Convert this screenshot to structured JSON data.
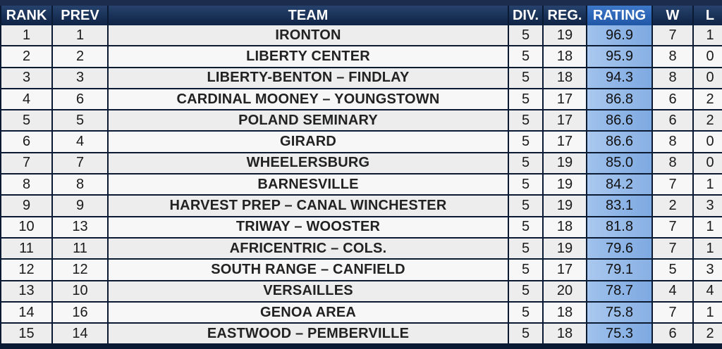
{
  "columns": {
    "rank": "RANK",
    "prev": "PREV",
    "team": "TEAM",
    "div": "DIV.",
    "reg": "REG.",
    "rating": "RATING",
    "w": "W",
    "l": "L"
  },
  "rows": [
    {
      "rank": "1",
      "prev": "1",
      "team": "IRONTON",
      "div": "5",
      "reg": "19",
      "rating": "96.9",
      "w": "7",
      "l": "1"
    },
    {
      "rank": "2",
      "prev": "2",
      "team": "LIBERTY CENTER",
      "div": "5",
      "reg": "18",
      "rating": "95.9",
      "w": "8",
      "l": "0"
    },
    {
      "rank": "3",
      "prev": "3",
      "team": "LIBERTY-BENTON – FINDLAY",
      "div": "5",
      "reg": "18",
      "rating": "94.3",
      "w": "8",
      "l": "0"
    },
    {
      "rank": "4",
      "prev": "6",
      "team": "CARDINAL MOONEY – YOUNGSTOWN",
      "div": "5",
      "reg": "17",
      "rating": "86.8",
      "w": "6",
      "l": "2"
    },
    {
      "rank": "5",
      "prev": "5",
      "team": "POLAND SEMINARY",
      "div": "5",
      "reg": "17",
      "rating": "86.6",
      "w": "6",
      "l": "2"
    },
    {
      "rank": "6",
      "prev": "4",
      "team": "GIRARD",
      "div": "5",
      "reg": "17",
      "rating": "86.6",
      "w": "8",
      "l": "0"
    },
    {
      "rank": "7",
      "prev": "7",
      "team": "WHEELERSBURG",
      "div": "5",
      "reg": "19",
      "rating": "85.0",
      "w": "8",
      "l": "0"
    },
    {
      "rank": "8",
      "prev": "8",
      "team": "BARNESVILLE",
      "div": "5",
      "reg": "19",
      "rating": "84.2",
      "w": "7",
      "l": "1"
    },
    {
      "rank": "9",
      "prev": "9",
      "team": "HARVEST PREP – CANAL WINCHESTER",
      "div": "5",
      "reg": "19",
      "rating": "83.1",
      "w": "2",
      "l": "3"
    },
    {
      "rank": "10",
      "prev": "13",
      "team": "TRIWAY – WOOSTER",
      "div": "5",
      "reg": "18",
      "rating": "81.8",
      "w": "7",
      "l": "1"
    },
    {
      "rank": "11",
      "prev": "11",
      "team": "AFRICENTRIC – COLS.",
      "div": "5",
      "reg": "19",
      "rating": "79.6",
      "w": "7",
      "l": "1"
    },
    {
      "rank": "12",
      "prev": "12",
      "team": "SOUTH RANGE – CANFIELD",
      "div": "5",
      "reg": "17",
      "rating": "79.1",
      "w": "5",
      "l": "3"
    },
    {
      "rank": "13",
      "prev": "10",
      "team": "VERSAILLES",
      "div": "5",
      "reg": "20",
      "rating": "78.7",
      "w": "4",
      "l": "4"
    },
    {
      "rank": "14",
      "prev": "16",
      "team": "GENOA AREA",
      "div": "5",
      "reg": "18",
      "rating": "75.8",
      "w": "7",
      "l": "1"
    },
    {
      "rank": "15",
      "prev": "14",
      "team": "EASTWOOD – PEMBERVILLE",
      "div": "5",
      "reg": "18",
      "rating": "75.3",
      "w": "6",
      "l": "2"
    }
  ]
}
